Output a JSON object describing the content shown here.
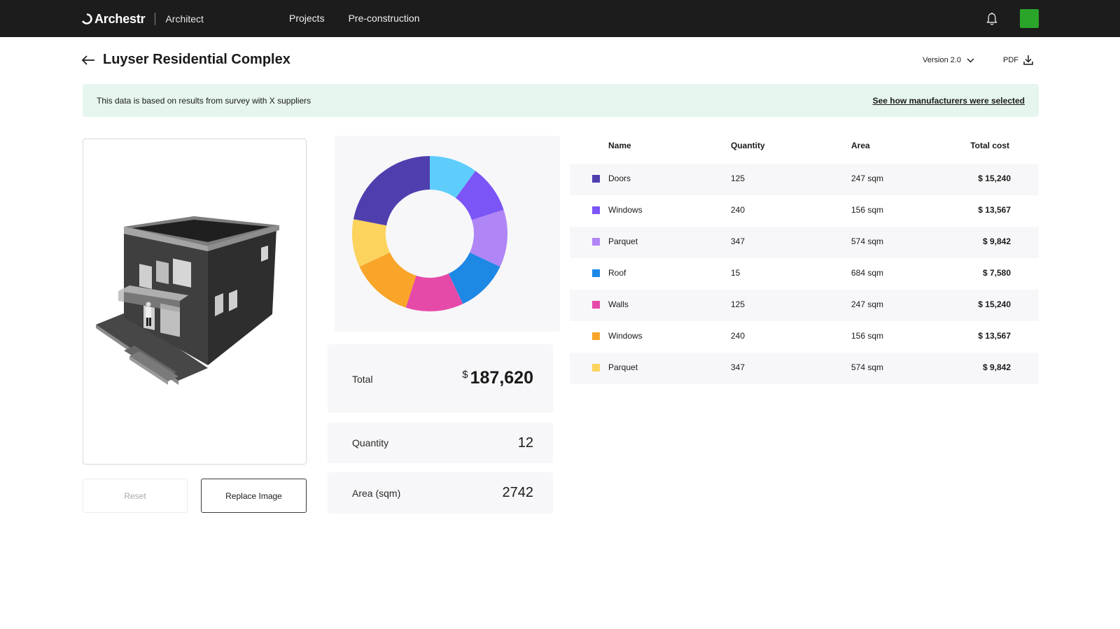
{
  "nav": {
    "brand": "Archestr",
    "role": "Architect",
    "links": [
      "Projects",
      "Pre-construction"
    ]
  },
  "header": {
    "title": "Luyser Residential Complex",
    "version_label": "Version 2.0",
    "pdf_label": "PDF"
  },
  "banner": {
    "text": "This data is based on results from survey with X suppliers",
    "link": "See how manufacturers were selected"
  },
  "image_panel": {
    "reset_label": "Reset",
    "replace_label": "Replace Image"
  },
  "summary": {
    "total_label": "Total",
    "total_currency": "$",
    "total_value": "187,620",
    "quantity_label": "Quantity",
    "quantity_value": "12",
    "area_label": "Area (sqm)",
    "area_value": "2742"
  },
  "table": {
    "headers": [
      "Name",
      "Quantity",
      "Area",
      "Total cost"
    ],
    "rows": [
      {
        "name": "Doors",
        "quantity": "125",
        "area": "247 sqm",
        "cost": "$ 15,240",
        "color": "#4f3fae"
      },
      {
        "name": "Windows",
        "quantity": "240",
        "area": "156 sqm",
        "cost": "$ 13,567",
        "color": "#7b55f5"
      },
      {
        "name": "Parquet",
        "quantity": "347",
        "area": "574 sqm",
        "cost": "$ 9,842",
        "color": "#b085f5"
      },
      {
        "name": "Roof",
        "quantity": "15",
        "area": "684 sqm",
        "cost": "$ 7,580",
        "color": "#1e88e5"
      },
      {
        "name": "Walls",
        "quantity": "125",
        "area": "247 sqm",
        "cost": "$ 15,240",
        "color": "#e64aa8"
      },
      {
        "name": "Windows",
        "quantity": "240",
        "area": "156 sqm",
        "cost": "$ 13,567",
        "color": "#f8a52a"
      },
      {
        "name": "Parquet",
        "quantity": "347",
        "area": "574 sqm",
        "cost": "$ 9,842",
        "color": "#fcd35c"
      }
    ]
  },
  "chart_data": {
    "type": "pie",
    "donut": true,
    "slices": [
      {
        "value": 10,
        "color": "#5ecdfc"
      },
      {
        "value": 10,
        "color": "#7b55f5"
      },
      {
        "value": 12,
        "color": "#b085f5"
      },
      {
        "value": 11,
        "color": "#1e88e5"
      },
      {
        "value": 12,
        "color": "#e64aa8"
      },
      {
        "value": 13,
        "color": "#f8a52a"
      },
      {
        "value": 10,
        "color": "#fcd35c"
      },
      {
        "value": 22,
        "color": "#4f3fae"
      }
    ]
  },
  "colors": {
    "topbar": "#1c1c1c",
    "banner_bg": "#e6f6ee",
    "avatar": "#2aa52a"
  }
}
